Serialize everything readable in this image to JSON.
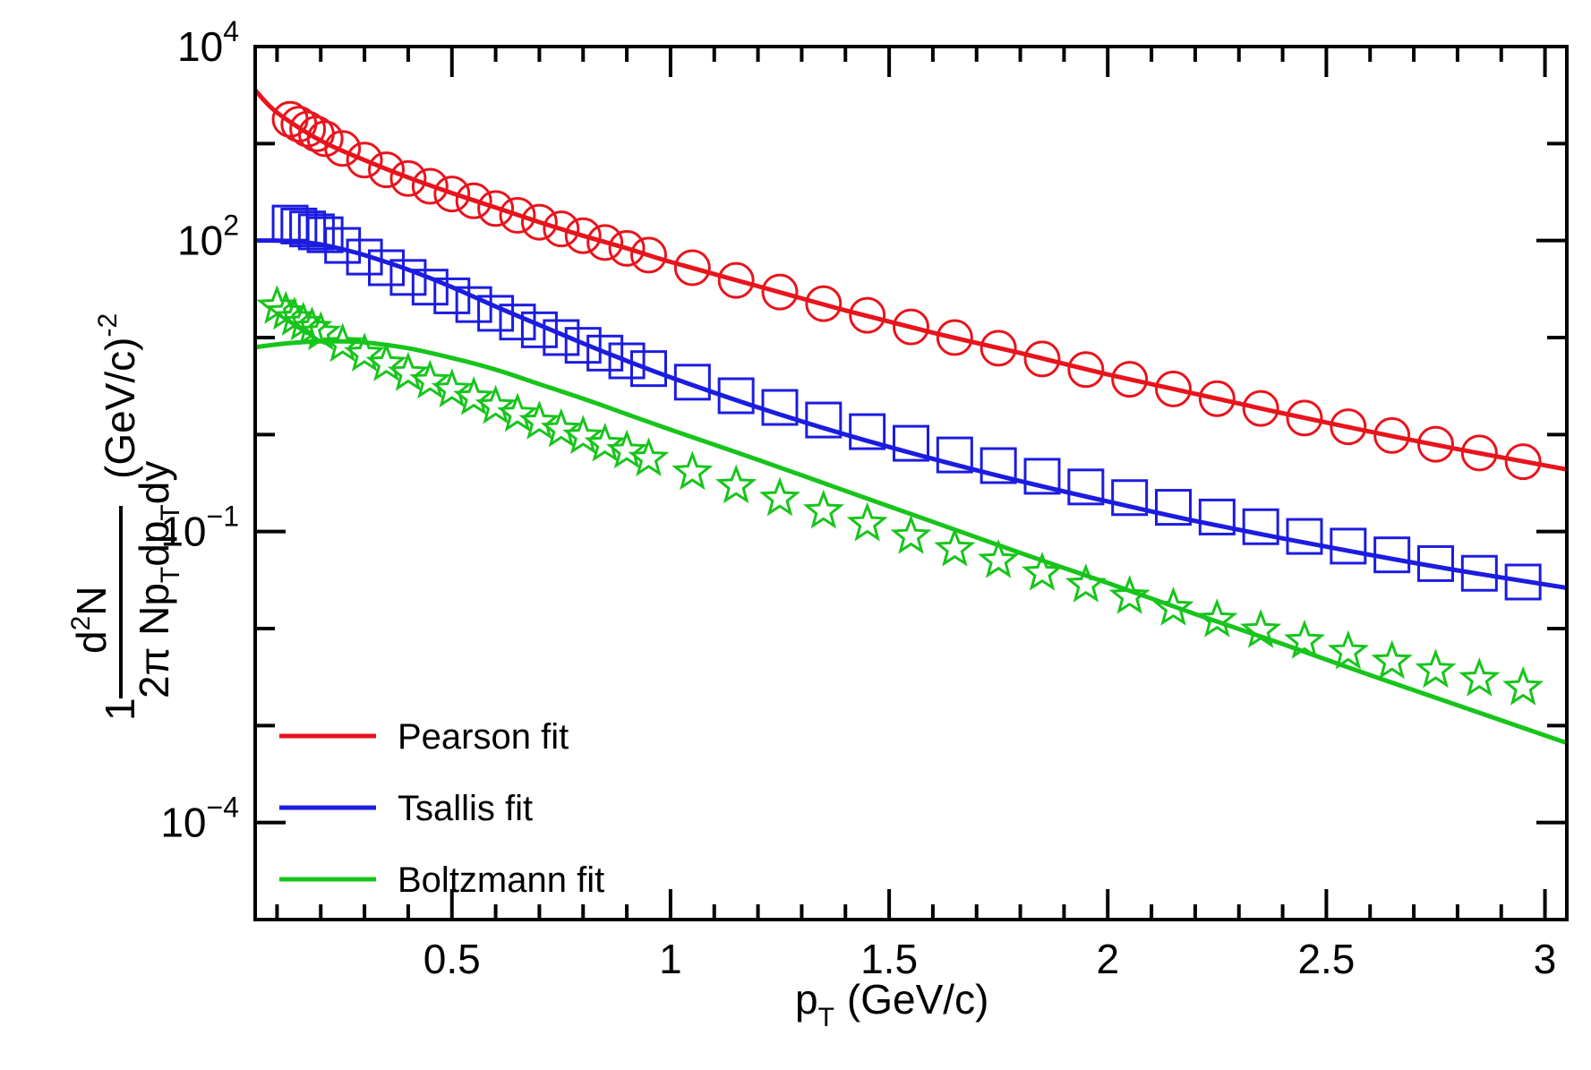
{
  "chart_data": {
    "type": "scatter",
    "title": "",
    "xlabel": "p_T (GeV/c)",
    "xlabel_parts": {
      "p": "p",
      "sub": "T",
      "rest": "(GeV/c)"
    },
    "ylabel_parts": {
      "one": "1",
      "numerator_d": "d",
      "numerator_sup": "2",
      "numerator_N": "N",
      "denominator": "2π Np",
      "den_sub1": "T",
      "den_mid": "dp",
      "den_sub2": "T",
      "den_end": "dy",
      "units": "(GeV/c)",
      "units_sup": "-2"
    },
    "xlim": [
      0.05,
      3.05
    ],
    "ylim_log10": [
      -5,
      4
    ],
    "y_scale": "log",
    "x_ticks": [
      {
        "value": 0.5,
        "label": "0.5"
      },
      {
        "value": 1,
        "label": "1"
      },
      {
        "value": 1.5,
        "label": "1.5"
      },
      {
        "value": 2,
        "label": "2"
      },
      {
        "value": 2.5,
        "label": "2.5"
      },
      {
        "value": 3,
        "label": "3"
      }
    ],
    "y_ticks": [
      {
        "exp": 4,
        "base": "10",
        "sup": "4"
      },
      {
        "exp": 2,
        "base": "10",
        "sup": "2"
      },
      {
        "exp": -1,
        "base": "10",
        "sup": "−1"
      },
      {
        "exp": -4,
        "base": "10",
        "sup": "−4"
      }
    ],
    "legend_position": "bottom-left",
    "legend": [
      {
        "label": "Pearson fit",
        "color": "#e8141c"
      },
      {
        "label": "Tsallis fit",
        "color": "#1c1ce0"
      },
      {
        "label": "Boltzmann fit",
        "color": "#18c41c"
      }
    ],
    "series": [
      {
        "name": "circles",
        "marker": "circle",
        "color": "#e8141c",
        "x": [
          0.13,
          0.15,
          0.17,
          0.19,
          0.21,
          0.25,
          0.3,
          0.35,
          0.4,
          0.45,
          0.5,
          0.55,
          0.6,
          0.65,
          0.7,
          0.75,
          0.8,
          0.85,
          0.9,
          0.95,
          1.05,
          1.15,
          1.25,
          1.35,
          1.45,
          1.55,
          1.65,
          1.75,
          1.85,
          1.95,
          2.05,
          2.15,
          2.25,
          2.35,
          2.45,
          2.55,
          2.65,
          2.75,
          2.85,
          2.95
        ],
        "log10y": [
          3.25,
          3.2,
          3.15,
          3.1,
          3.05,
          2.95,
          2.83,
          2.73,
          2.64,
          2.56,
          2.48,
          2.41,
          2.33,
          2.26,
          2.19,
          2.12,
          2.05,
          1.98,
          1.92,
          1.85,
          1.72,
          1.59,
          1.47,
          1.35,
          1.23,
          1.11,
          1.0,
          0.89,
          0.78,
          0.67,
          0.57,
          0.47,
          0.37,
          0.27,
          0.17,
          0.08,
          -0.01,
          -0.1,
          -0.19,
          -0.28
        ]
      },
      {
        "name": "squares",
        "marker": "square",
        "color": "#1c1ce0",
        "x": [
          0.13,
          0.15,
          0.17,
          0.19,
          0.21,
          0.25,
          0.3,
          0.35,
          0.4,
          0.45,
          0.5,
          0.55,
          0.6,
          0.65,
          0.7,
          0.75,
          0.8,
          0.85,
          0.9,
          0.95,
          1.05,
          1.15,
          1.25,
          1.35,
          1.45,
          1.55,
          1.65,
          1.75,
          1.85,
          1.95,
          2.05,
          2.15,
          2.25,
          2.35,
          2.45,
          2.55,
          2.65,
          2.75,
          2.85,
          2.95
        ],
        "log10y": [
          2.18,
          2.15,
          2.12,
          2.09,
          2.06,
          1.95,
          1.83,
          1.72,
          1.62,
          1.52,
          1.43,
          1.34,
          1.25,
          1.16,
          1.08,
          1.0,
          0.92,
          0.84,
          0.76,
          0.68,
          0.54,
          0.4,
          0.28,
          0.15,
          0.03,
          -0.09,
          -0.21,
          -0.32,
          -0.43,
          -0.54,
          -0.65,
          -0.75,
          -0.85,
          -0.95,
          -1.05,
          -1.15,
          -1.24,
          -1.33,
          -1.43,
          -1.52
        ]
      },
      {
        "name": "stars",
        "marker": "star",
        "color": "#18c41c",
        "x": [
          0.1,
          0.12,
          0.14,
          0.16,
          0.18,
          0.2,
          0.25,
          0.3,
          0.35,
          0.4,
          0.45,
          0.5,
          0.55,
          0.6,
          0.65,
          0.7,
          0.75,
          0.8,
          0.85,
          0.9,
          0.95,
          1.05,
          1.15,
          1.25,
          1.35,
          1.45,
          1.55,
          1.65,
          1.75,
          1.85,
          1.95,
          2.05,
          2.15,
          2.25,
          2.35,
          2.45,
          2.55,
          2.65,
          2.75,
          2.85,
          2.95
        ],
        "log10y": [
          1.32,
          1.26,
          1.2,
          1.15,
          1.1,
          1.05,
          0.93,
          0.83,
          0.73,
          0.63,
          0.55,
          0.46,
          0.38,
          0.29,
          0.21,
          0.13,
          0.05,
          -0.02,
          -0.1,
          -0.17,
          -0.25,
          -0.39,
          -0.53,
          -0.66,
          -0.79,
          -0.92,
          -1.05,
          -1.18,
          -1.3,
          -1.43,
          -1.55,
          -1.67,
          -1.79,
          -1.91,
          -2.02,
          -2.13,
          -2.24,
          -2.34,
          -2.43,
          -2.52,
          -2.61
        ]
      }
    ],
    "fits": [
      {
        "name": "Pearson fit",
        "color": "#e8141c",
        "x": [
          0.05,
          0.1,
          0.2,
          0.3,
          0.4,
          0.5,
          0.6,
          0.7,
          0.8,
          0.9,
          1.0,
          1.2,
          1.4,
          1.6,
          1.8,
          2.0,
          2.2,
          2.4,
          2.6,
          2.8,
          3.05
        ],
        "log10y": [
          3.55,
          3.32,
          3.03,
          2.83,
          2.65,
          2.49,
          2.34,
          2.19,
          2.05,
          1.92,
          1.78,
          1.53,
          1.28,
          1.05,
          0.84,
          0.62,
          0.42,
          0.22,
          0.03,
          -0.15,
          -0.36
        ]
      },
      {
        "name": "Tsallis fit",
        "color": "#1c1ce0",
        "x": [
          0.05,
          0.1,
          0.15,
          0.2,
          0.25,
          0.3,
          0.4,
          0.5,
          0.6,
          0.7,
          0.8,
          0.9,
          1.0,
          1.2,
          1.4,
          1.6,
          1.8,
          2.0,
          2.2,
          2.4,
          2.6,
          2.8,
          3.05
        ],
        "log10y": [
          2.0,
          2.0,
          1.99,
          1.96,
          1.91,
          1.85,
          1.7,
          1.52,
          1.32,
          1.13,
          0.94,
          0.76,
          0.59,
          0.28,
          0.0,
          -0.25,
          -0.48,
          -0.69,
          -0.89,
          -1.07,
          -1.24,
          -1.4,
          -1.58
        ]
      },
      {
        "name": "Boltzmann fit",
        "color": "#18c41c",
        "x": [
          0.05,
          0.1,
          0.15,
          0.2,
          0.25,
          0.3,
          0.4,
          0.5,
          0.6,
          0.7,
          0.8,
          0.9,
          1.0,
          1.2,
          1.4,
          1.6,
          1.8,
          2.0,
          2.2,
          2.4,
          2.6,
          2.8,
          3.05
        ],
        "log10y": [
          0.9,
          0.93,
          0.95,
          0.96,
          0.96,
          0.95,
          0.89,
          0.79,
          0.67,
          0.52,
          0.37,
          0.21,
          0.05,
          -0.26,
          -0.58,
          -0.9,
          -1.22,
          -1.53,
          -1.85,
          -2.16,
          -2.48,
          -2.79,
          -3.18
        ]
      }
    ]
  }
}
